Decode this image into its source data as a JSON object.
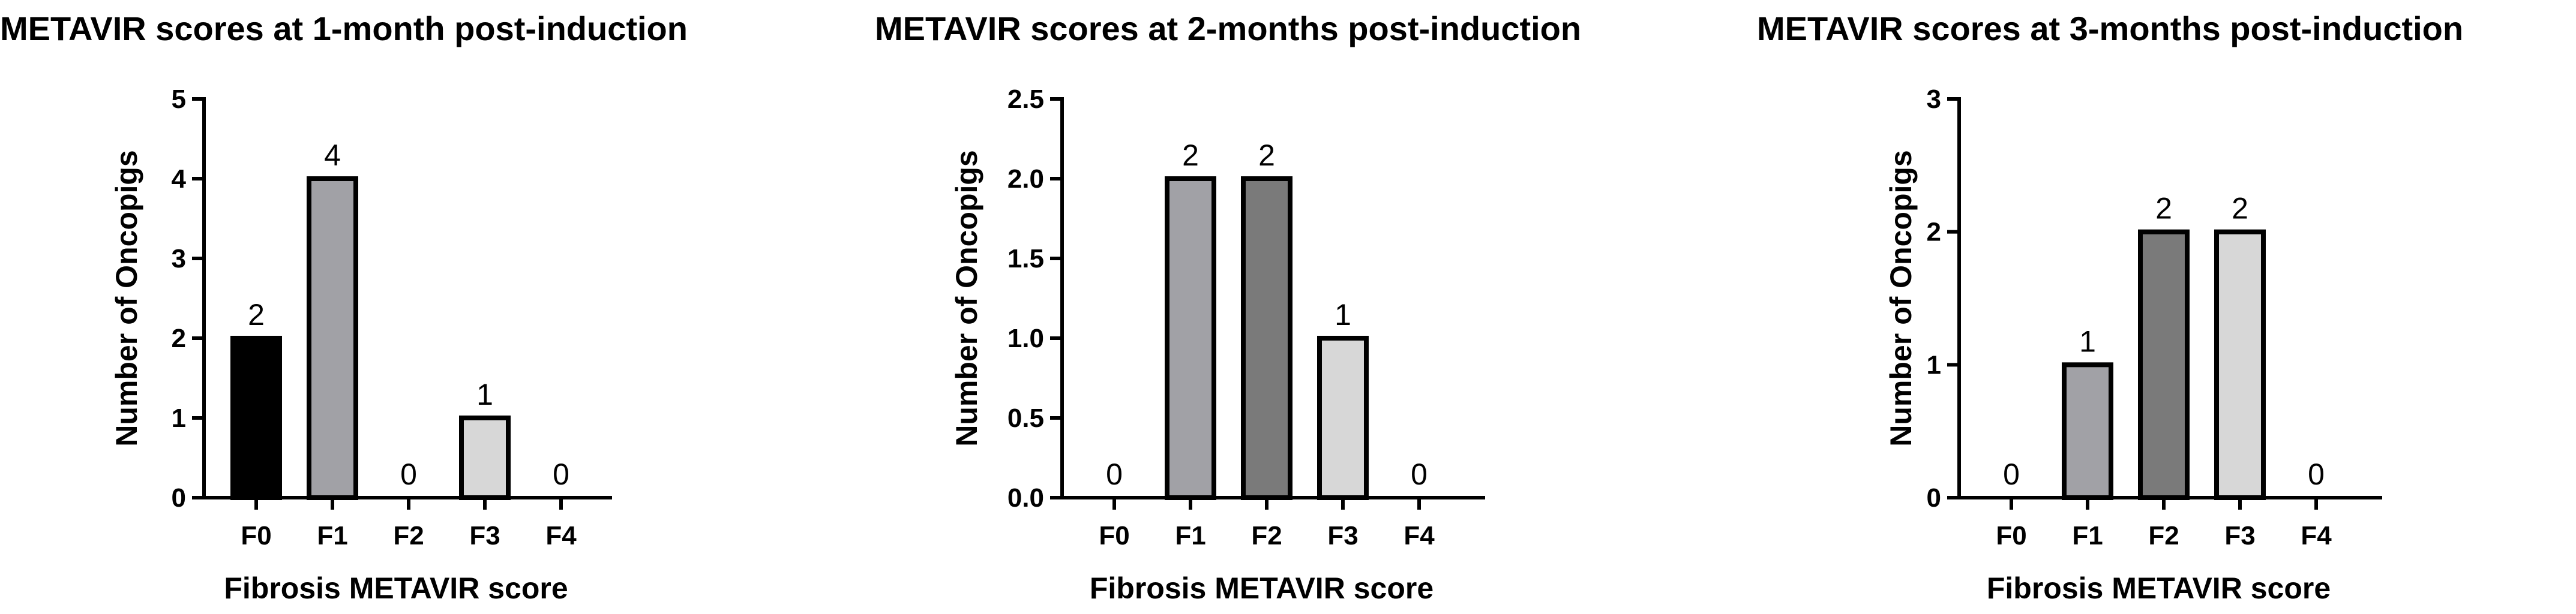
{
  "chart_data": [
    {
      "type": "bar",
      "title": "METAVIR scores at 1-month post-induction",
      "xlabel": "Fibrosis METAVIR score",
      "ylabel": "Number of Oncopigs",
      "categories": [
        "F0",
        "F1",
        "F2",
        "F3",
        "F4"
      ],
      "values": [
        2,
        4,
        0,
        1,
        0
      ],
      "data_labels": [
        "2",
        "4",
        "0",
        "1",
        "0"
      ],
      "ylim": [
        0,
        5
      ],
      "yticks": [
        "0",
        "1",
        "2",
        "3",
        "4",
        "5"
      ],
      "bar_colors": [
        "#000000",
        "#a1a1a6",
        "#7a7a7a",
        "#d7d7d7",
        "#ffffff"
      ],
      "grid": false
    },
    {
      "type": "bar",
      "title": "METAVIR scores at 2-months post-induction",
      "xlabel": "Fibrosis METAVIR score",
      "ylabel": "Number of Oncopigs",
      "categories": [
        "F0",
        "F1",
        "F2",
        "F3",
        "F4"
      ],
      "values": [
        0,
        2,
        2,
        1,
        0
      ],
      "data_labels": [
        "0",
        "2",
        "2",
        "1",
        "0"
      ],
      "ylim": [
        0,
        2.5
      ],
      "yticks": [
        "0.0",
        "0.5",
        "1.0",
        "1.5",
        "2.0",
        "2.5"
      ],
      "bar_colors": [
        "#000000",
        "#a1a1a6",
        "#7a7a7a",
        "#d7d7d7",
        "#ffffff"
      ],
      "grid": false
    },
    {
      "type": "bar",
      "title": "METAVIR scores at 3-months post-induction",
      "xlabel": "Fibrosis METAVIR score",
      "ylabel": "Number of Oncopigs",
      "categories": [
        "F0",
        "F1",
        "F2",
        "F3",
        "F4"
      ],
      "values": [
        0,
        1,
        2,
        2,
        0
      ],
      "data_labels": [
        "0",
        "1",
        "2",
        "2",
        "0"
      ],
      "ylim": [
        0,
        3
      ],
      "yticks": [
        "0",
        "1",
        "2",
        "3"
      ],
      "bar_colors": [
        "#000000",
        "#a1a1a6",
        "#7a7a7a",
        "#d7d7d7",
        "#ffffff"
      ],
      "grid": false
    }
  ]
}
